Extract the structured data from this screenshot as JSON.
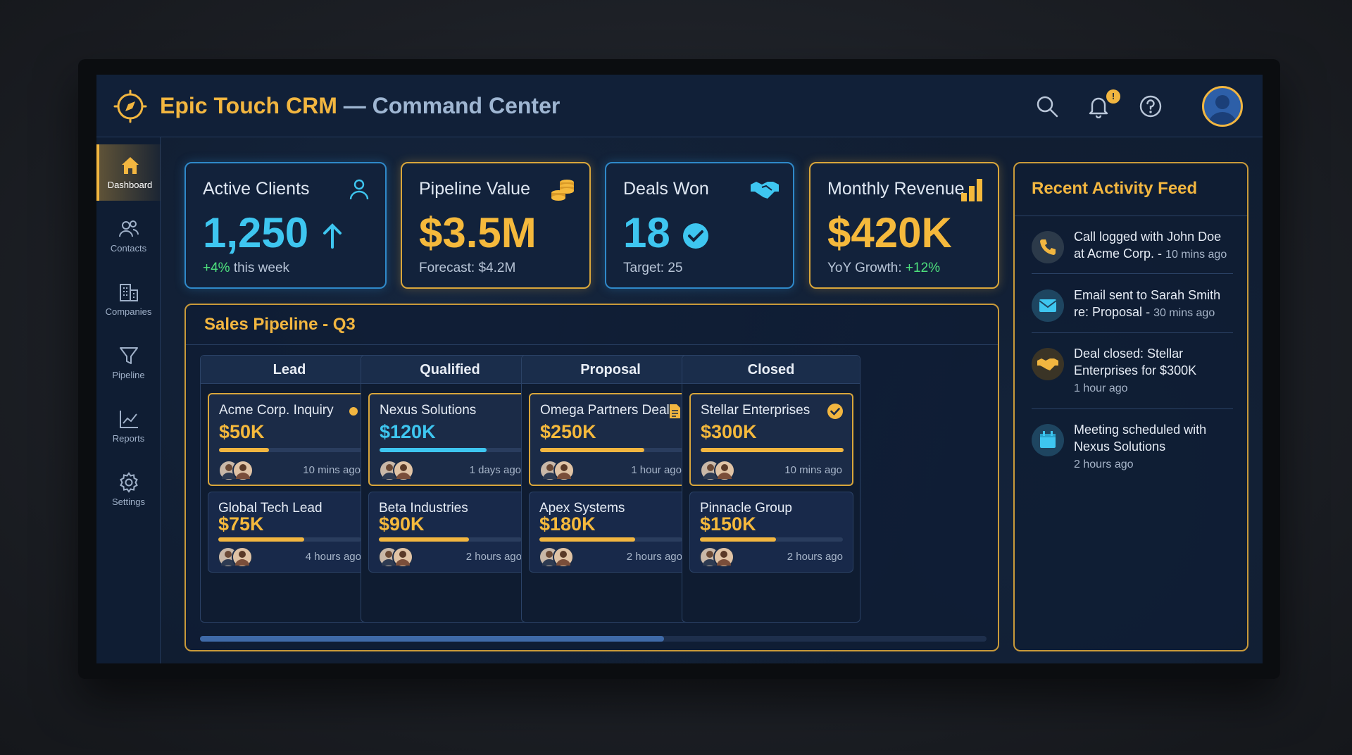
{
  "app": {
    "title_brand": "Epic Touch CRM",
    "title_separator": " — ",
    "title_section": "Command Center",
    "notification_count": "!"
  },
  "sidebar": {
    "items": [
      {
        "label": "Dashboard",
        "icon": "home-icon",
        "active": true
      },
      {
        "label": "Contacts",
        "icon": "contacts-icon"
      },
      {
        "label": "Companies",
        "icon": "building-icon"
      },
      {
        "label": "Pipeline",
        "icon": "funnel-icon"
      },
      {
        "label": "Reports",
        "icon": "chart-line-icon"
      },
      {
        "label": "Settings",
        "icon": "gear-icon"
      }
    ]
  },
  "kpis": [
    {
      "label": "Active Clients",
      "value": "1,250",
      "sub_prefix": "+4%",
      "sub_suffix": " this week",
      "icon": "user-icon"
    },
    {
      "label": "Pipeline Value",
      "value": "$3.5M",
      "sub": "Forecast: $4.2M",
      "icon": "coins-icon"
    },
    {
      "label": "Deals Won",
      "value": "18",
      "sub": "Target: 25",
      "icon": "handshake-icon"
    },
    {
      "label": "Monthly Revenue",
      "value": "$420K",
      "sub_prefix": "YoY Growth: ",
      "sub_suffix": "+12%",
      "icon": "bar-chart-icon"
    }
  ],
  "pipeline": {
    "title": "Sales Pipeline - Q3",
    "scroll_fraction": 0.59,
    "columns": [
      {
        "name": "Lead",
        "deals": [
          {
            "name": "Acme Corp. Inquiry",
            "amount": "$50K",
            "progress": 0.35,
            "time": "10 mins ago"
          },
          {
            "name": "Global Tech Lead",
            "amount": "$75K",
            "progress": 0.6,
            "time": "4 hours ago"
          }
        ]
      },
      {
        "name": "Qualified",
        "deals": [
          {
            "name": "Nexus Solutions",
            "amount": "$120K",
            "progress": 0.75,
            "time": "1 days ago"
          },
          {
            "name": "Beta Industries",
            "amount": "$90K",
            "progress": 0.63,
            "time": "2 hours ago"
          }
        ]
      },
      {
        "name": "Proposal",
        "deals": [
          {
            "name": "Omega Partners Deal",
            "amount": "$250K",
            "progress": 0.73,
            "time": "1 hour ago"
          },
          {
            "name": "Apex Systems",
            "amount": "$180K",
            "progress": 0.67,
            "time": "2 hours ago"
          }
        ]
      },
      {
        "name": "Closed",
        "deals": [
          {
            "name": "Stellar Enterprises",
            "amount": "$300K",
            "progress": 1.0,
            "time": "10 mins ago"
          },
          {
            "name": "Pinnacle Group",
            "amount": "$150K",
            "progress": 0.53,
            "time": "2 hours ago"
          }
        ]
      }
    ]
  },
  "activity": {
    "title": "Recent Activity Feed",
    "items": [
      {
        "text": "Call logged with John Doe at Acme Corp.",
        "time": "10 mins ago",
        "icon": "phone-icon"
      },
      {
        "text": "Email sent to Sarah Smith re: Proposal",
        "time": "30 mins ago",
        "icon": "mail-icon"
      },
      {
        "text": "Deal closed: Stellar Enterprises for $300K",
        "time": "1 hour ago",
        "icon": "handshake-icon"
      },
      {
        "text": "Meeting scheduled with Nexus Solutions",
        "time": "2 hours ago",
        "icon": "calendar-icon"
      }
    ]
  },
  "colors": {
    "gold": "#f2b640",
    "blue": "#3ec6f0",
    "green": "#4ee07d",
    "panel": "#12223b"
  }
}
